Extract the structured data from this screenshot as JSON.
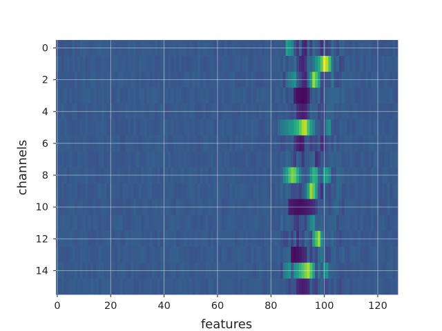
{
  "chart_data": {
    "type": "heatmap",
    "title": "",
    "xlabel": "features",
    "ylabel": "channels",
    "x_range": [
      -0.5,
      127.5
    ],
    "y_range": [
      -0.5,
      15.5
    ],
    "y_inverted": true,
    "x_ticks": [
      0,
      20,
      40,
      60,
      80,
      100,
      120
    ],
    "y_ticks": [
      0,
      2,
      4,
      6,
      8,
      10,
      12,
      14
    ],
    "grid": true,
    "colormap": "viridis",
    "n_rows": 16,
    "n_cols": 128,
    "background_value": 0.28,
    "band_columns": [
      84,
      107
    ],
    "band_rows": [
      {
        "row": 0,
        "cells": [
          [
            86,
            0.55
          ],
          [
            87,
            0.5
          ],
          [
            88,
            0.45
          ],
          [
            90,
            0.18
          ],
          [
            92,
            0.15
          ],
          [
            93,
            0.12
          ],
          [
            95,
            0.2
          ],
          [
            99,
            0.15
          ],
          [
            100,
            0.3
          ],
          [
            101,
            0.2
          ]
        ]
      },
      {
        "row": 1,
        "cells": [
          [
            89,
            0.35
          ],
          [
            90,
            0.22
          ],
          [
            91,
            0.15
          ],
          [
            92,
            0.12
          ],
          [
            93,
            0.18
          ],
          [
            96,
            0.4
          ],
          [
            97,
            0.5
          ],
          [
            98,
            0.6
          ],
          [
            99,
            0.75
          ],
          [
            100,
            0.95
          ],
          [
            101,
            0.88
          ],
          [
            102,
            0.7
          ],
          [
            103,
            0.4
          ]
        ]
      },
      {
        "row": 2,
        "cells": [
          [
            85,
            0.22
          ],
          [
            86,
            0.35
          ],
          [
            87,
            0.4
          ],
          [
            88,
            0.45
          ],
          [
            89,
            0.5
          ],
          [
            92,
            0.15
          ],
          [
            93,
            0.12
          ],
          [
            95,
            0.55
          ],
          [
            96,
            0.85
          ],
          [
            97,
            0.7
          ],
          [
            98,
            0.55
          ],
          [
            103,
            0.4
          ]
        ]
      },
      {
        "row": 3,
        "cells": [
          [
            89,
            0.1
          ],
          [
            90,
            0.05
          ],
          [
            91,
            0.04
          ],
          [
            92,
            0.03
          ],
          [
            93,
            0.04
          ],
          [
            94,
            0.1
          ],
          [
            96,
            0.3
          ],
          [
            99,
            0.2
          ]
        ]
      },
      {
        "row": 4,
        "cells": [
          [
            90,
            0.15
          ],
          [
            91,
            0.12
          ],
          [
            92,
            0.1
          ],
          [
            93,
            0.12
          ],
          [
            94,
            0.2
          ],
          [
            98,
            0.22
          ]
        ]
      },
      {
        "row": 5,
        "cells": [
          [
            83,
            0.35
          ],
          [
            84,
            0.4
          ],
          [
            85,
            0.42
          ],
          [
            86,
            0.45
          ],
          [
            87,
            0.5
          ],
          [
            88,
            0.52
          ],
          [
            89,
            0.6
          ],
          [
            90,
            0.65
          ],
          [
            91,
            0.75
          ],
          [
            92,
            0.88
          ],
          [
            93,
            0.9
          ],
          [
            94,
            0.7
          ],
          [
            95,
            0.55
          ],
          [
            96,
            0.45
          ],
          [
            97,
            0.3
          ],
          [
            101,
            0.45
          ],
          [
            102,
            0.5
          ]
        ]
      },
      {
        "row": 6,
        "cells": [
          [
            89,
            0.18
          ],
          [
            90,
            0.12
          ],
          [
            91,
            0.08
          ],
          [
            92,
            0.1
          ],
          [
            95,
            0.2
          ],
          [
            99,
            0.15
          ],
          [
            100,
            0.2
          ]
        ]
      },
      {
        "row": 7,
        "cells": [
          [
            88,
            0.25
          ],
          [
            89,
            0.2
          ],
          [
            92,
            0.18
          ],
          [
            97,
            0.15
          ],
          [
            98,
            0.2
          ]
        ]
      },
      {
        "row": 8,
        "cells": [
          [
            85,
            0.45
          ],
          [
            86,
            0.55
          ],
          [
            87,
            0.7
          ],
          [
            88,
            0.8
          ],
          [
            89,
            0.75
          ],
          [
            90,
            0.6
          ],
          [
            91,
            0.4
          ],
          [
            95,
            0.5
          ],
          [
            96,
            0.65
          ],
          [
            97,
            0.6
          ],
          [
            100,
            0.5
          ],
          [
            101,
            0.55
          ],
          [
            102,
            0.45
          ]
        ]
      },
      {
        "row": 9,
        "cells": [
          [
            90,
            0.25
          ],
          [
            91,
            0.2
          ],
          [
            93,
            0.35
          ],
          [
            94,
            0.6
          ],
          [
            95,
            0.85
          ],
          [
            96,
            0.75
          ],
          [
            97,
            0.55
          ],
          [
            99,
            0.15
          ]
        ]
      },
      {
        "row": 10,
        "cells": [
          [
            87,
            0.1
          ],
          [
            88,
            0.08
          ],
          [
            89,
            0.06
          ],
          [
            90,
            0.05
          ],
          [
            91,
            0.05
          ],
          [
            92,
            0.06
          ],
          [
            93,
            0.08
          ],
          [
            94,
            0.1
          ],
          [
            95,
            0.12
          ],
          [
            96,
            0.15
          ],
          [
            97,
            0.2
          ]
        ]
      },
      {
        "row": 11,
        "cells": [
          [
            89,
            0.2
          ],
          [
            90,
            0.18
          ],
          [
            91,
            0.25
          ],
          [
            93,
            0.22
          ],
          [
            95,
            0.45
          ],
          [
            96,
            0.5
          ],
          [
            97,
            0.3
          ]
        ]
      },
      {
        "row": 12,
        "cells": [
          [
            88,
            0.2
          ],
          [
            90,
            0.15
          ],
          [
            92,
            0.22
          ],
          [
            96,
            0.55
          ],
          [
            97,
            0.7
          ],
          [
            98,
            0.85
          ],
          [
            99,
            0.5
          ]
        ]
      },
      {
        "row": 13,
        "cells": [
          [
            88,
            0.05
          ],
          [
            89,
            0.04
          ],
          [
            90,
            0.06
          ],
          [
            91,
            0.08
          ],
          [
            92,
            0.12
          ],
          [
            93,
            0.15
          ],
          [
            95,
            0.2
          ],
          [
            97,
            0.22
          ],
          [
            98,
            0.35
          ],
          [
            99,
            0.4
          ]
        ]
      },
      {
        "row": 14,
        "cells": [
          [
            85,
            0.4
          ],
          [
            86,
            0.45
          ],
          [
            87,
            0.5
          ],
          [
            89,
            0.5
          ],
          [
            90,
            0.55
          ],
          [
            91,
            0.65
          ],
          [
            92,
            0.72
          ],
          [
            93,
            0.8
          ],
          [
            94,
            0.88
          ],
          [
            95,
            0.72
          ],
          [
            96,
            0.55
          ],
          [
            98,
            0.4
          ],
          [
            100,
            0.45
          ],
          [
            101,
            0.5
          ]
        ]
      },
      {
        "row": 15,
        "cells": [
          [
            87,
            0.22
          ],
          [
            90,
            0.15
          ],
          [
            91,
            0.12
          ],
          [
            92,
            0.1
          ],
          [
            93,
            0.12
          ],
          [
            94,
            0.15
          ],
          [
            97,
            0.2
          ]
        ]
      }
    ]
  }
}
